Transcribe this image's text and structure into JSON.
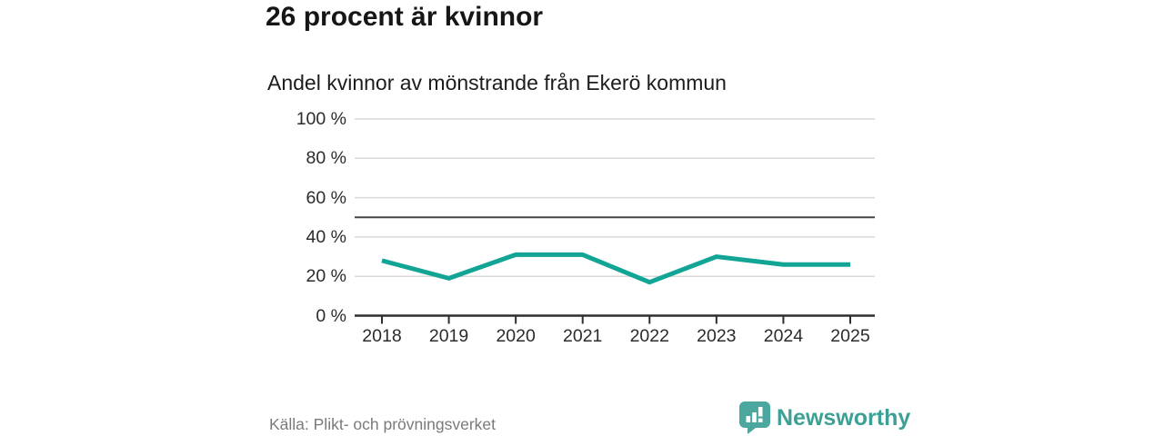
{
  "header": {
    "title": "26 procent är kvinnor",
    "subtitle": "Andel kvinnor av mönstrande från Ekerö kommun"
  },
  "chart_data": {
    "type": "line",
    "title": "26 procent är kvinnor",
    "subtitle": "Andel kvinnor av mönstrande från Ekerö kommun",
    "categories": [
      "2018",
      "2019",
      "2020",
      "2021",
      "2022",
      "2023",
      "2024",
      "2025"
    ],
    "series": [
      {
        "name": "Andel kvinnor",
        "values": [
          28,
          19,
          31,
          31,
          17,
          30,
          26,
          26
        ]
      }
    ],
    "unit": "%",
    "ylim": [
      0,
      100
    ],
    "yticks": [
      0,
      20,
      40,
      60,
      80,
      100
    ],
    "ytick_suffix": " %",
    "reference_line": 50,
    "grid": true,
    "legend": "none"
  },
  "footer": {
    "source": "Källa: Plikt- och prövningsverket",
    "brand": "Newsworthy",
    "brand_icon": "bar-chart-speech-bubble-icon"
  },
  "colors": {
    "line": "#12a495",
    "grid": "#d8d8d8",
    "axis": "#2e2e2e",
    "reference_line": "#454545",
    "title_text": "#161616",
    "tick_label": "#2b2b2b",
    "source_text": "#7a7a7a",
    "brand_text": "#3da095",
    "brand_icon_fill": "#4ca79f"
  }
}
